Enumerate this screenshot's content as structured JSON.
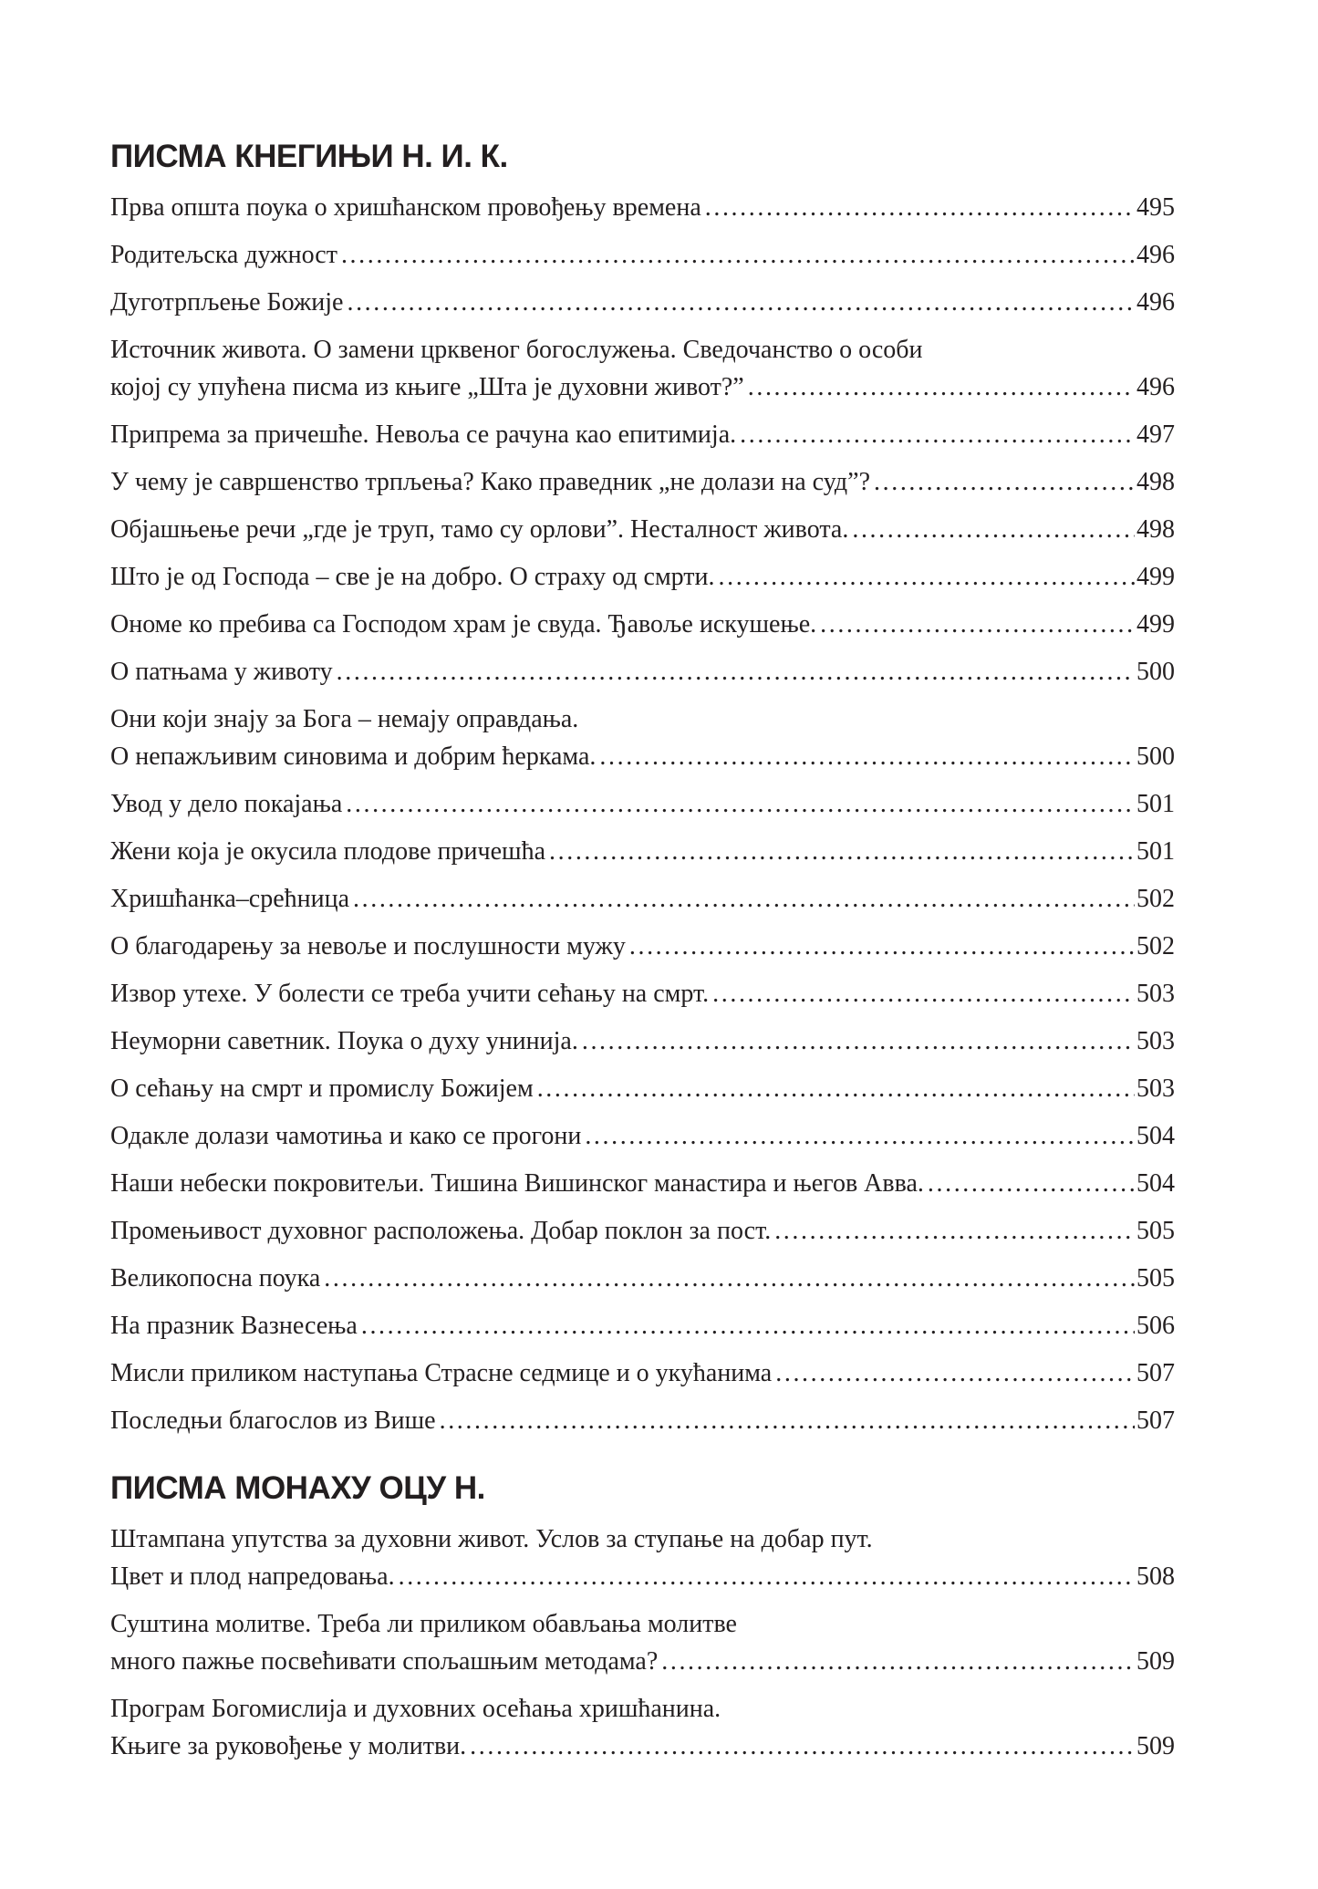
{
  "sections": [
    {
      "title": "ПИСМА КНЕГИЊИ Н. И. К.",
      "entries": [
        {
          "lines": [
            "Прва општа поука о хришћанском провођењу времена"
          ],
          "page": "495"
        },
        {
          "lines": [
            "Родитељска дужност"
          ],
          "page": "496"
        },
        {
          "lines": [
            "Дуготрпљење Божије"
          ],
          "page": "496"
        },
        {
          "lines": [
            "Источник живота. О замени црквеног богослужења. Сведочанство о особи",
            "којој су упућена писма из књиге „Шта је духовни живот?”"
          ],
          "page": "496"
        },
        {
          "lines": [
            "Припрема за причешће. Невоља се рачуна као епитимија."
          ],
          "page": "497"
        },
        {
          "lines": [
            "У чему је савршенство трпљења? Како праведник „не долази на суд”?"
          ],
          "page": "498"
        },
        {
          "lines": [
            "Објашњење речи „где је труп, тамо су орлови”. Несталност живота."
          ],
          "page": "498"
        },
        {
          "lines": [
            "Што је од Господа – све је на добро. О страху од смрти."
          ],
          "page": "499"
        },
        {
          "lines": [
            "Ономе ко пребива са Господом храм је свуда. Ђавоље искушење."
          ],
          "page": "499"
        },
        {
          "lines": [
            "О патњама у животу"
          ],
          "page": "500"
        },
        {
          "lines": [
            "Они који знају за Бога – немају оправдања.",
            "О непажљивим синовима и добрим ћеркама."
          ],
          "page": "500"
        },
        {
          "lines": [
            "Увод у дело покајања"
          ],
          "page": "501"
        },
        {
          "lines": [
            "Жени која је окусила плодове причешћа"
          ],
          "page": "501"
        },
        {
          "lines": [
            "Хришћанка–срећница"
          ],
          "page": "502"
        },
        {
          "lines": [
            "О благодарењу за невоље и послушности мужу"
          ],
          "page": "502"
        },
        {
          "lines": [
            "Извор утехе. У болести се треба учити сећању на смрт."
          ],
          "page": "503"
        },
        {
          "lines": [
            "Неуморни саветник. Поука о духу униниjа."
          ],
          "page": "503"
        },
        {
          "lines": [
            "О сећању на смрт и промислу Божијем"
          ],
          "page": "503"
        },
        {
          "lines": [
            "Одакле долази чамотиња и како се прогони"
          ],
          "page": "504"
        },
        {
          "lines": [
            "Наши небески покровитељи. Тишина Вишинског манастира и његов Авва."
          ],
          "page": "504"
        },
        {
          "lines": [
            "Промењивост духовног расположења. Добар поклон за пост."
          ],
          "page": "505"
        },
        {
          "lines": [
            "Великопосна поука"
          ],
          "page": "505"
        },
        {
          "lines": [
            "На празник Вазнесења"
          ],
          "page": "506"
        },
        {
          "lines": [
            "Мисли приликом наступања Страсне седмице и о укућанима"
          ],
          "page": "507"
        },
        {
          "lines": [
            "Последњи благослов из Више"
          ],
          "page": "507"
        }
      ]
    },
    {
      "title": "ПИСМА МОНАХУ ОЦУ Н.",
      "entries": [
        {
          "lines": [
            "Штампана упутства за духовни живот. Услов за ступање на добар пут.",
            "Цвет и плод напредовања."
          ],
          "page": "508"
        },
        {
          "lines": [
            "Суштина молитве. Треба ли приликом обављања молитве",
            "много пажње посвећивати спољашњим методама?"
          ],
          "page": "509"
        },
        {
          "lines": [
            "Програм Богомислија и духовних осећања хришћанина.",
            "Књиге за руковођење у молитви."
          ],
          "page": "509"
        }
      ]
    }
  ]
}
